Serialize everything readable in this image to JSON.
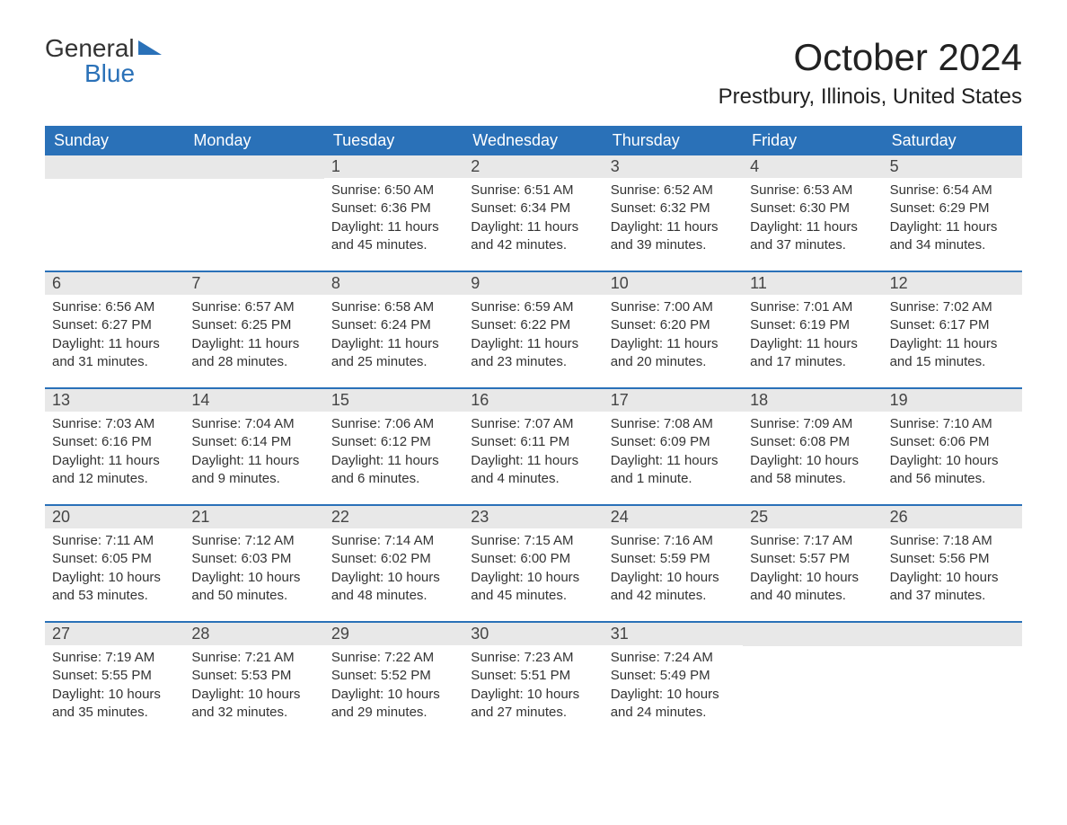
{
  "logo": {
    "general": "General",
    "blue": "Blue",
    "flag_color": "#2a71b8"
  },
  "title": "October 2024",
  "location": "Prestbury, Illinois, United States",
  "colors": {
    "header_bg": "#2a71b8",
    "header_text": "#ffffff",
    "daynum_bg": "#e8e8e8",
    "text": "#333333",
    "row_divider": "#2a71b8",
    "page_bg": "#ffffff"
  },
  "typography": {
    "month_title_pt": 42,
    "location_pt": 24,
    "weekday_pt": 18,
    "daynum_pt": 18,
    "body_pt": 15,
    "logo_pt": 28
  },
  "layout": {
    "columns": 7,
    "weeks": 5
  },
  "weekdays": [
    "Sunday",
    "Monday",
    "Tuesday",
    "Wednesday",
    "Thursday",
    "Friday",
    "Saturday"
  ],
  "weeks": [
    [
      {
        "day": ""
      },
      {
        "day": ""
      },
      {
        "day": "1",
        "sunrise": "Sunrise: 6:50 AM",
        "sunset": "Sunset: 6:36 PM",
        "daylight1": "Daylight: 11 hours",
        "daylight2": "and 45 minutes."
      },
      {
        "day": "2",
        "sunrise": "Sunrise: 6:51 AM",
        "sunset": "Sunset: 6:34 PM",
        "daylight1": "Daylight: 11 hours",
        "daylight2": "and 42 minutes."
      },
      {
        "day": "3",
        "sunrise": "Sunrise: 6:52 AM",
        "sunset": "Sunset: 6:32 PM",
        "daylight1": "Daylight: 11 hours",
        "daylight2": "and 39 minutes."
      },
      {
        "day": "4",
        "sunrise": "Sunrise: 6:53 AM",
        "sunset": "Sunset: 6:30 PM",
        "daylight1": "Daylight: 11 hours",
        "daylight2": "and 37 minutes."
      },
      {
        "day": "5",
        "sunrise": "Sunrise: 6:54 AM",
        "sunset": "Sunset: 6:29 PM",
        "daylight1": "Daylight: 11 hours",
        "daylight2": "and 34 minutes."
      }
    ],
    [
      {
        "day": "6",
        "sunrise": "Sunrise: 6:56 AM",
        "sunset": "Sunset: 6:27 PM",
        "daylight1": "Daylight: 11 hours",
        "daylight2": "and 31 minutes."
      },
      {
        "day": "7",
        "sunrise": "Sunrise: 6:57 AM",
        "sunset": "Sunset: 6:25 PM",
        "daylight1": "Daylight: 11 hours",
        "daylight2": "and 28 minutes."
      },
      {
        "day": "8",
        "sunrise": "Sunrise: 6:58 AM",
        "sunset": "Sunset: 6:24 PM",
        "daylight1": "Daylight: 11 hours",
        "daylight2": "and 25 minutes."
      },
      {
        "day": "9",
        "sunrise": "Sunrise: 6:59 AM",
        "sunset": "Sunset: 6:22 PM",
        "daylight1": "Daylight: 11 hours",
        "daylight2": "and 23 minutes."
      },
      {
        "day": "10",
        "sunrise": "Sunrise: 7:00 AM",
        "sunset": "Sunset: 6:20 PM",
        "daylight1": "Daylight: 11 hours",
        "daylight2": "and 20 minutes."
      },
      {
        "day": "11",
        "sunrise": "Sunrise: 7:01 AM",
        "sunset": "Sunset: 6:19 PM",
        "daylight1": "Daylight: 11 hours",
        "daylight2": "and 17 minutes."
      },
      {
        "day": "12",
        "sunrise": "Sunrise: 7:02 AM",
        "sunset": "Sunset: 6:17 PM",
        "daylight1": "Daylight: 11 hours",
        "daylight2": "and 15 minutes."
      }
    ],
    [
      {
        "day": "13",
        "sunrise": "Sunrise: 7:03 AM",
        "sunset": "Sunset: 6:16 PM",
        "daylight1": "Daylight: 11 hours",
        "daylight2": "and 12 minutes."
      },
      {
        "day": "14",
        "sunrise": "Sunrise: 7:04 AM",
        "sunset": "Sunset: 6:14 PM",
        "daylight1": "Daylight: 11 hours",
        "daylight2": "and 9 minutes."
      },
      {
        "day": "15",
        "sunrise": "Sunrise: 7:06 AM",
        "sunset": "Sunset: 6:12 PM",
        "daylight1": "Daylight: 11 hours",
        "daylight2": "and 6 minutes."
      },
      {
        "day": "16",
        "sunrise": "Sunrise: 7:07 AM",
        "sunset": "Sunset: 6:11 PM",
        "daylight1": "Daylight: 11 hours",
        "daylight2": "and 4 minutes."
      },
      {
        "day": "17",
        "sunrise": "Sunrise: 7:08 AM",
        "sunset": "Sunset: 6:09 PM",
        "daylight1": "Daylight: 11 hours",
        "daylight2": "and 1 minute."
      },
      {
        "day": "18",
        "sunrise": "Sunrise: 7:09 AM",
        "sunset": "Sunset: 6:08 PM",
        "daylight1": "Daylight: 10 hours",
        "daylight2": "and 58 minutes."
      },
      {
        "day": "19",
        "sunrise": "Sunrise: 7:10 AM",
        "sunset": "Sunset: 6:06 PM",
        "daylight1": "Daylight: 10 hours",
        "daylight2": "and 56 minutes."
      }
    ],
    [
      {
        "day": "20",
        "sunrise": "Sunrise: 7:11 AM",
        "sunset": "Sunset: 6:05 PM",
        "daylight1": "Daylight: 10 hours",
        "daylight2": "and 53 minutes."
      },
      {
        "day": "21",
        "sunrise": "Sunrise: 7:12 AM",
        "sunset": "Sunset: 6:03 PM",
        "daylight1": "Daylight: 10 hours",
        "daylight2": "and 50 minutes."
      },
      {
        "day": "22",
        "sunrise": "Sunrise: 7:14 AM",
        "sunset": "Sunset: 6:02 PM",
        "daylight1": "Daylight: 10 hours",
        "daylight2": "and 48 minutes."
      },
      {
        "day": "23",
        "sunrise": "Sunrise: 7:15 AM",
        "sunset": "Sunset: 6:00 PM",
        "daylight1": "Daylight: 10 hours",
        "daylight2": "and 45 minutes."
      },
      {
        "day": "24",
        "sunrise": "Sunrise: 7:16 AM",
        "sunset": "Sunset: 5:59 PM",
        "daylight1": "Daylight: 10 hours",
        "daylight2": "and 42 minutes."
      },
      {
        "day": "25",
        "sunrise": "Sunrise: 7:17 AM",
        "sunset": "Sunset: 5:57 PM",
        "daylight1": "Daylight: 10 hours",
        "daylight2": "and 40 minutes."
      },
      {
        "day": "26",
        "sunrise": "Sunrise: 7:18 AM",
        "sunset": "Sunset: 5:56 PM",
        "daylight1": "Daylight: 10 hours",
        "daylight2": "and 37 minutes."
      }
    ],
    [
      {
        "day": "27",
        "sunrise": "Sunrise: 7:19 AM",
        "sunset": "Sunset: 5:55 PM",
        "daylight1": "Daylight: 10 hours",
        "daylight2": "and 35 minutes."
      },
      {
        "day": "28",
        "sunrise": "Sunrise: 7:21 AM",
        "sunset": "Sunset: 5:53 PM",
        "daylight1": "Daylight: 10 hours",
        "daylight2": "and 32 minutes."
      },
      {
        "day": "29",
        "sunrise": "Sunrise: 7:22 AM",
        "sunset": "Sunset: 5:52 PM",
        "daylight1": "Daylight: 10 hours",
        "daylight2": "and 29 minutes."
      },
      {
        "day": "30",
        "sunrise": "Sunrise: 7:23 AM",
        "sunset": "Sunset: 5:51 PM",
        "daylight1": "Daylight: 10 hours",
        "daylight2": "and 27 minutes."
      },
      {
        "day": "31",
        "sunrise": "Sunrise: 7:24 AM",
        "sunset": "Sunset: 5:49 PM",
        "daylight1": "Daylight: 10 hours",
        "daylight2": "and 24 minutes."
      },
      {
        "day": ""
      },
      {
        "day": ""
      }
    ]
  ]
}
